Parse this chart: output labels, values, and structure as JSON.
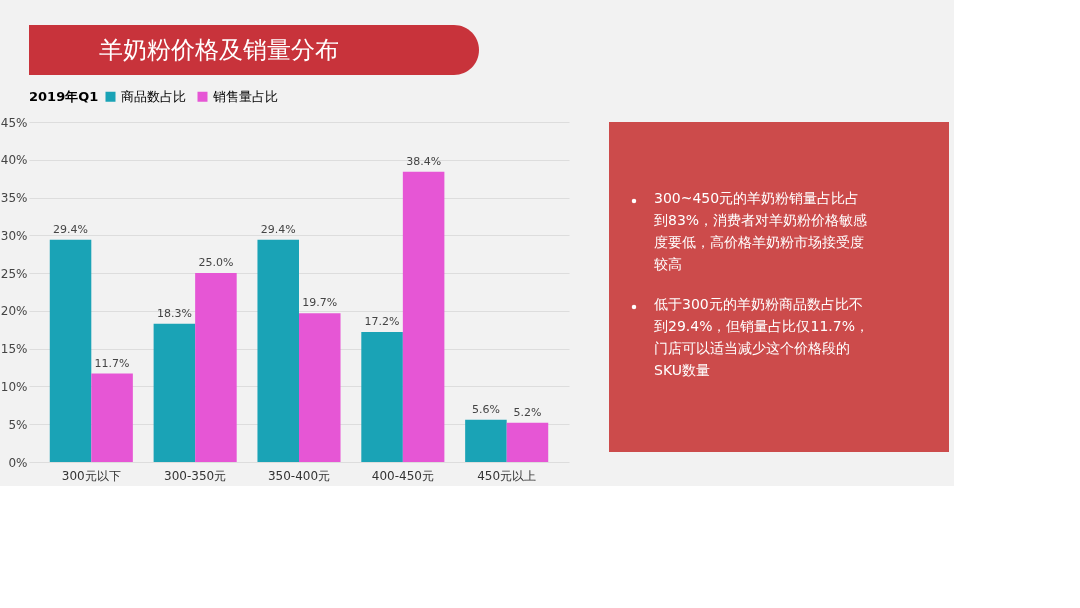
{
  "chart_data": [
    {
      "type": "bar",
      "title": "羊奶粉价格及销量分布",
      "legend_title": "2019年Q1",
      "categories": [
        "300元以下",
        "300-350元",
        "350-400元",
        "400-450元",
        "450元以上"
      ],
      "series": [
        {
          "name": "商品数占比",
          "color": "#1aa3b6",
          "values": [
            29.4,
            18.3,
            29.4,
            17.2,
            5.6
          ],
          "value_labels": [
            "29.4%",
            "18.3%",
            "29.4%",
            "17.2%",
            "5.6%"
          ]
        },
        {
          "name": "销售量占比",
          "color": "#e656d5",
          "values": [
            11.7,
            25.0,
            19.7,
            38.4,
            5.2
          ],
          "value_labels": [
            "11.7%",
            "25.0%",
            "19.7%",
            "38.4%",
            "5.2%"
          ]
        }
      ],
      "ylim": [
        0,
        45
      ],
      "yticks": [
        {
          "value": 0,
          "label": "0%"
        },
        {
          "value": 5,
          "label": "5%"
        },
        {
          "value": 10,
          "label": "10%"
        },
        {
          "value": 15,
          "label": "15%"
        },
        {
          "value": 20,
          "label": "20%"
        },
        {
          "value": 25,
          "label": "25%"
        },
        {
          "value": 30,
          "label": "30%"
        },
        {
          "value": 35,
          "label": "35%"
        },
        {
          "value": 40,
          "label": "40%"
        },
        {
          "value": 45,
          "label": "45%"
        }
      ],
      "grid": "y",
      "legend": "top"
    },
    {
      "type": "other",
      "annotations": [
        "300~450元的羊奶粉销量占比占到83%，消费者对羊奶粉价格敏感度要低，高价格羊奶粉市场接受度较高",
        "低于300元的羊奶粉商品数占比不到29.4%，但销量占比仅11.7%，门店可以适当减少这个价格段的SKU数量"
      ]
    }
  ]
}
